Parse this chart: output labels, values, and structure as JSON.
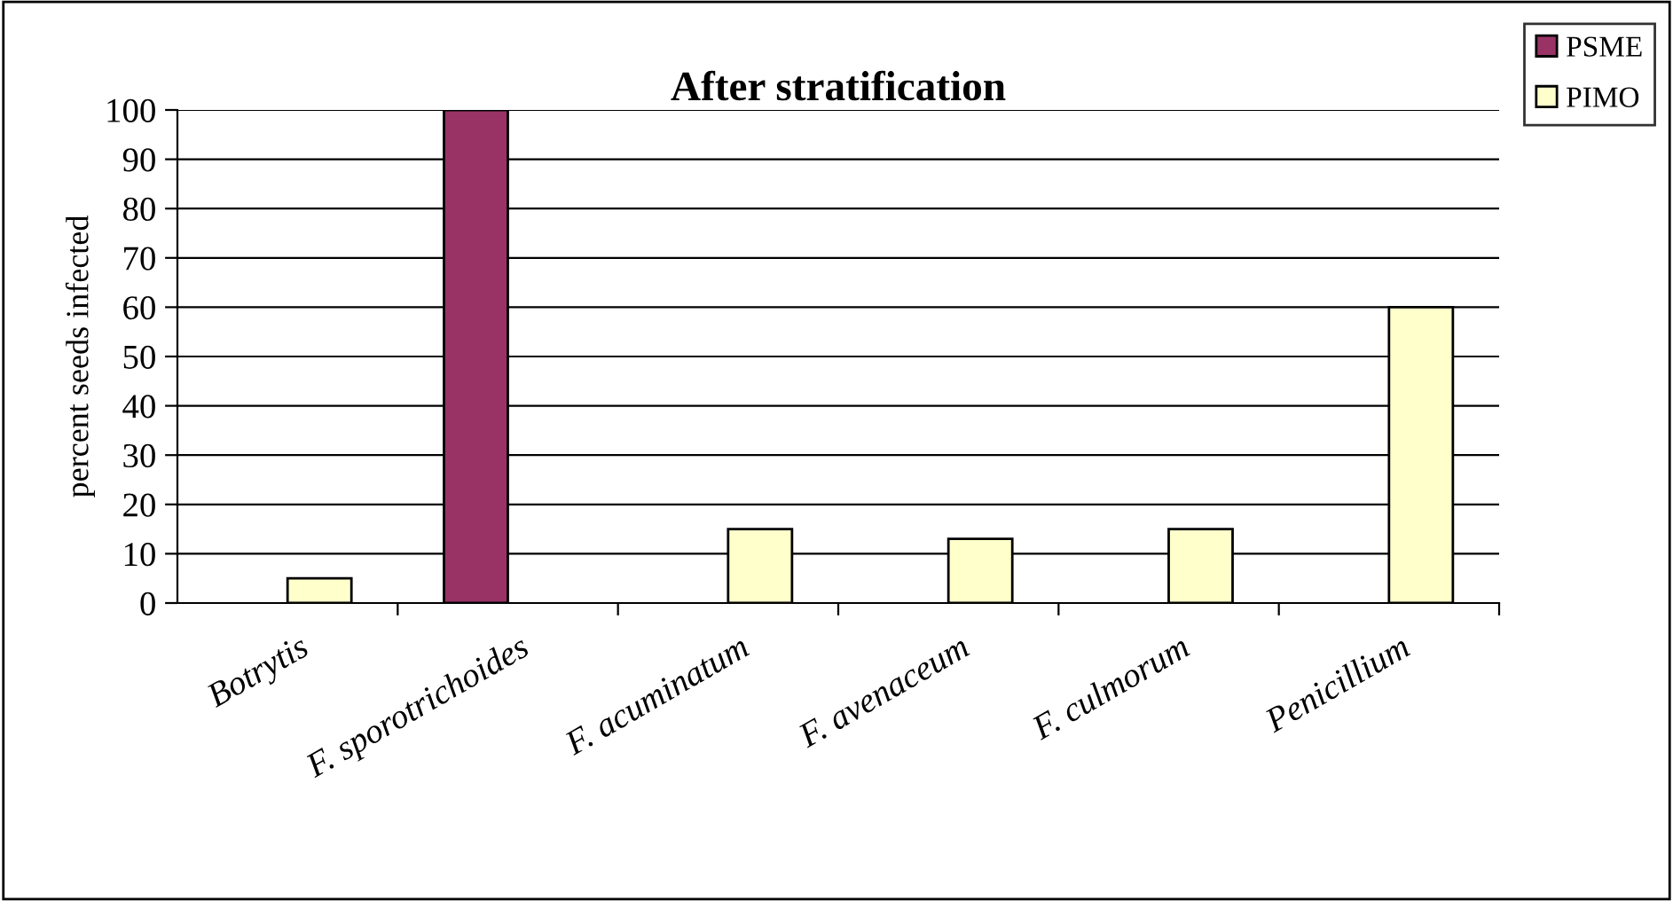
{
  "chart_data": {
    "type": "bar",
    "title": "After stratification",
    "ylabel": "percent seeds infected",
    "categories": [
      "Botrytis",
      "F. sporotrichoides",
      "F. acuminatum",
      "F. avenaceum",
      "F. culmorum",
      "Penicillium"
    ],
    "series": [
      {
        "name": "PSME",
        "color": "#993366",
        "values": [
          null,
          100,
          null,
          null,
          null,
          null
        ]
      },
      {
        "name": "PIMO",
        "color": "#ffffcc",
        "values": [
          5,
          null,
          15,
          13,
          15,
          60
        ]
      }
    ],
    "ylim": [
      0,
      100
    ],
    "yticks": [
      0,
      10,
      20,
      30,
      40,
      50,
      60,
      70,
      80,
      90,
      100
    ],
    "grid": "y",
    "legend": "top right"
  }
}
